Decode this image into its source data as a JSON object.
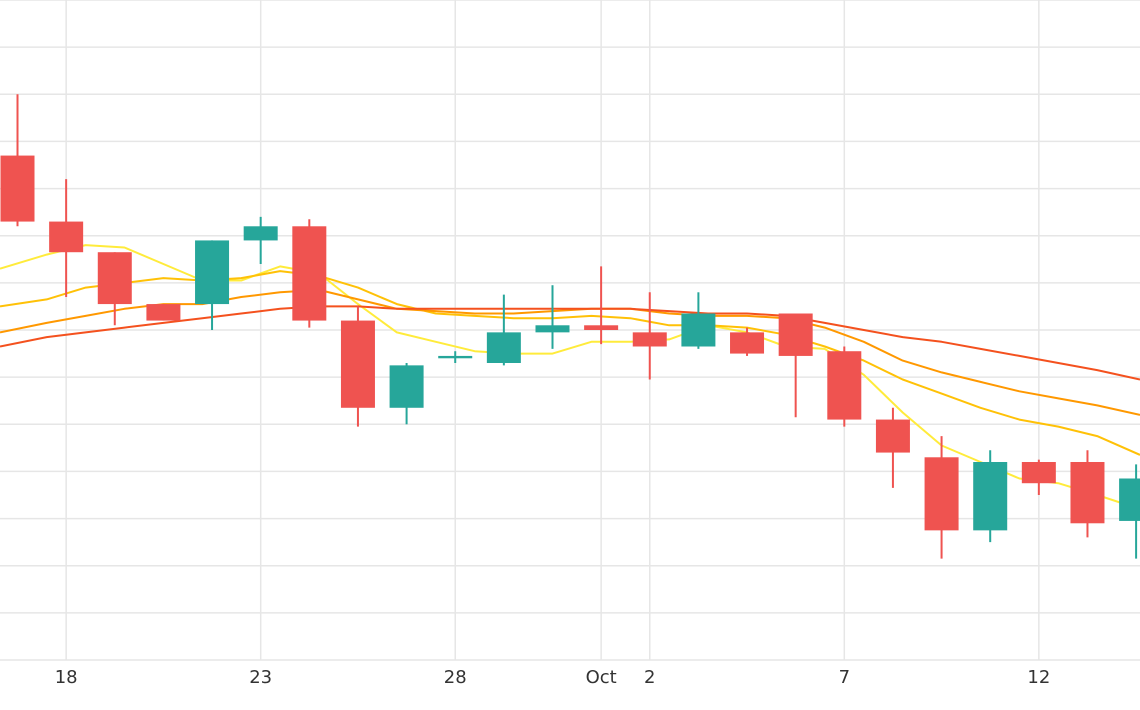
{
  "chart_data": {
    "type": "candlestick",
    "title": "",
    "xlabel": "",
    "ylabel": "",
    "grid": true,
    "legend": "none",
    "x_ticks": [
      {
        "label": "18",
        "day": 18
      },
      {
        "label": "23",
        "day": 23
      },
      {
        "label": "28",
        "day": 28
      },
      {
        "label": "Oct",
        "day": 31.75
      },
      {
        "label": "2",
        "day": 33
      },
      {
        "label": "7",
        "day": 38
      },
      {
        "label": "12",
        "day": 43
      }
    ],
    "x_range": [
      16.3,
      45.6
    ],
    "y_range": [
      0,
      14
    ],
    "y_grid_step": 1,
    "candles": [
      {
        "day": 16.75,
        "open": 10.7,
        "high": 12.0,
        "low": 9.2,
        "close": 9.3
      },
      {
        "day": 18.0,
        "open": 9.3,
        "high": 10.2,
        "low": 7.7,
        "close": 8.65
      },
      {
        "day": 19.25,
        "open": 8.65,
        "high": 8.65,
        "low": 7.1,
        "close": 7.55
      },
      {
        "day": 20.5,
        "open": 7.55,
        "high": 7.55,
        "low": 7.2,
        "close": 7.2
      },
      {
        "day": 21.75,
        "open": 7.55,
        "high": 8.9,
        "low": 7.0,
        "close": 8.9
      },
      {
        "day": 23.0,
        "open": 8.9,
        "high": 9.4,
        "low": 8.4,
        "close": 9.2
      },
      {
        "day": 24.25,
        "open": 9.2,
        "high": 9.35,
        "low": 7.05,
        "close": 7.2
      },
      {
        "day": 25.5,
        "open": 7.2,
        "high": 7.5,
        "low": 4.95,
        "close": 5.35
      },
      {
        "day": 26.75,
        "open": 5.35,
        "high": 6.3,
        "low": 5.0,
        "close": 6.25
      },
      {
        "day": 28.0,
        "open": 6.4,
        "high": 6.55,
        "low": 6.3,
        "close": 6.45
      },
      {
        "day": 29.25,
        "open": 6.3,
        "high": 7.75,
        "low": 6.25,
        "close": 6.95
      },
      {
        "day": 30.5,
        "open": 6.95,
        "high": 7.95,
        "low": 6.6,
        "close": 7.1
      },
      {
        "day": 31.75,
        "open": 7.1,
        "high": 8.35,
        "low": 6.7,
        "close": 7.0
      },
      {
        "day": 33.0,
        "open": 6.95,
        "high": 7.8,
        "low": 5.95,
        "close": 6.65
      },
      {
        "day": 34.25,
        "open": 6.65,
        "high": 7.8,
        "low": 6.6,
        "close": 7.35
      },
      {
        "day": 35.5,
        "open": 6.95,
        "high": 7.05,
        "low": 6.45,
        "close": 6.5
      },
      {
        "day": 36.75,
        "open": 7.35,
        "high": 7.35,
        "low": 5.15,
        "close": 6.45
      },
      {
        "day": 38.0,
        "open": 6.55,
        "high": 6.65,
        "low": 4.95,
        "close": 5.1
      },
      {
        "day": 39.25,
        "open": 5.1,
        "high": 5.35,
        "low": 3.65,
        "close": 4.4
      },
      {
        "day": 40.5,
        "open": 4.3,
        "high": 4.75,
        "low": 2.15,
        "close": 2.75
      },
      {
        "day": 41.75,
        "open": 2.75,
        "high": 4.45,
        "low": 2.5,
        "close": 4.2
      },
      {
        "day": 43.0,
        "open": 4.2,
        "high": 4.25,
        "low": 3.5,
        "close": 3.75
      },
      {
        "day": 44.25,
        "open": 4.2,
        "high": 4.45,
        "low": 2.6,
        "close": 2.9
      },
      {
        "day": 45.5,
        "open": 2.95,
        "high": 4.15,
        "low": 2.15,
        "close": 3.85
      }
    ],
    "series": [
      {
        "color": "#ffeb3b",
        "points": [
          [
            16.3,
            8.3
          ],
          [
            17.5,
            8.6
          ],
          [
            18.5,
            8.8
          ],
          [
            19.5,
            8.75
          ],
          [
            20.5,
            8.4
          ],
          [
            21.5,
            8.05
          ],
          [
            22.5,
            8.05
          ],
          [
            23.5,
            8.35
          ],
          [
            24.5,
            8.2
          ],
          [
            25.5,
            7.55
          ],
          [
            26.5,
            6.95
          ],
          [
            27.5,
            6.75
          ],
          [
            28.5,
            6.55
          ],
          [
            29.5,
            6.5
          ],
          [
            30.5,
            6.5
          ],
          [
            31.5,
            6.75
          ],
          [
            32.5,
            6.75
          ],
          [
            33.5,
            6.8
          ],
          [
            34.5,
            7.1
          ],
          [
            35.5,
            6.95
          ],
          [
            36.5,
            6.65
          ],
          [
            37.5,
            6.6
          ],
          [
            38.5,
            6.05
          ],
          [
            39.5,
            5.25
          ],
          [
            40.5,
            4.55
          ],
          [
            41.5,
            4.2
          ],
          [
            42.5,
            3.85
          ],
          [
            43.5,
            3.75
          ],
          [
            44.5,
            3.5
          ],
          [
            45.6,
            3.2
          ]
        ]
      },
      {
        "color": "#ffc107",
        "points": [
          [
            16.3,
            7.5
          ],
          [
            17.5,
            7.65
          ],
          [
            18.5,
            7.9
          ],
          [
            19.5,
            8.0
          ],
          [
            20.5,
            8.1
          ],
          [
            21.5,
            8.05
          ],
          [
            22.5,
            8.1
          ],
          [
            23.5,
            8.25
          ],
          [
            24.5,
            8.15
          ],
          [
            25.5,
            7.9
          ],
          [
            26.5,
            7.55
          ],
          [
            27.5,
            7.35
          ],
          [
            28.5,
            7.3
          ],
          [
            29.5,
            7.25
          ],
          [
            30.5,
            7.25
          ],
          [
            31.5,
            7.3
          ],
          [
            32.5,
            7.25
          ],
          [
            33.5,
            7.1
          ],
          [
            34.5,
            7.1
          ],
          [
            35.5,
            7.05
          ],
          [
            36.5,
            6.9
          ],
          [
            37.5,
            6.65
          ],
          [
            38.5,
            6.35
          ],
          [
            39.5,
            5.95
          ],
          [
            40.5,
            5.65
          ],
          [
            41.5,
            5.35
          ],
          [
            42.5,
            5.1
          ],
          [
            43.5,
            4.95
          ],
          [
            44.5,
            4.75
          ],
          [
            45.6,
            4.35
          ]
        ]
      },
      {
        "color": "#ff9800",
        "points": [
          [
            16.3,
            6.95
          ],
          [
            17.5,
            7.15
          ],
          [
            18.5,
            7.3
          ],
          [
            19.5,
            7.45
          ],
          [
            20.5,
            7.55
          ],
          [
            21.5,
            7.55
          ],
          [
            22.5,
            7.7
          ],
          [
            23.5,
            7.8
          ],
          [
            24.5,
            7.85
          ],
          [
            25.5,
            7.65
          ],
          [
            26.5,
            7.45
          ],
          [
            27.5,
            7.4
          ],
          [
            28.5,
            7.35
          ],
          [
            29.5,
            7.35
          ],
          [
            30.5,
            7.4
          ],
          [
            31.5,
            7.45
          ],
          [
            32.5,
            7.45
          ],
          [
            33.5,
            7.35
          ],
          [
            34.5,
            7.3
          ],
          [
            35.5,
            7.3
          ],
          [
            36.5,
            7.25
          ],
          [
            37.5,
            7.05
          ],
          [
            38.5,
            6.75
          ],
          [
            39.5,
            6.35
          ],
          [
            40.5,
            6.1
          ],
          [
            41.5,
            5.9
          ],
          [
            42.5,
            5.7
          ],
          [
            43.5,
            5.55
          ],
          [
            44.5,
            5.4
          ],
          [
            45.6,
            5.2
          ]
        ]
      },
      {
        "color": "#f4511e",
        "points": [
          [
            16.3,
            6.65
          ],
          [
            17.5,
            6.85
          ],
          [
            18.5,
            6.95
          ],
          [
            19.5,
            7.05
          ],
          [
            20.5,
            7.15
          ],
          [
            21.5,
            7.25
          ],
          [
            22.5,
            7.35
          ],
          [
            23.5,
            7.45
          ],
          [
            24.5,
            7.5
          ],
          [
            25.5,
            7.5
          ],
          [
            26.5,
            7.45
          ],
          [
            27.5,
            7.45
          ],
          [
            28.5,
            7.45
          ],
          [
            29.5,
            7.45
          ],
          [
            30.5,
            7.45
          ],
          [
            31.5,
            7.45
          ],
          [
            32.5,
            7.45
          ],
          [
            33.5,
            7.4
          ],
          [
            34.5,
            7.35
          ],
          [
            35.5,
            7.35
          ],
          [
            36.5,
            7.3
          ],
          [
            37.5,
            7.15
          ],
          [
            38.5,
            7.0
          ],
          [
            39.5,
            6.85
          ],
          [
            40.5,
            6.75
          ],
          [
            41.5,
            6.6
          ],
          [
            42.5,
            6.45
          ],
          [
            43.5,
            6.3
          ],
          [
            44.5,
            6.15
          ],
          [
            45.6,
            5.95
          ]
        ]
      }
    ],
    "colors": {
      "up": "#26a69a",
      "down": "#ef5350",
      "grid": "#e6e6e6",
      "axis_text": "#333333"
    }
  }
}
